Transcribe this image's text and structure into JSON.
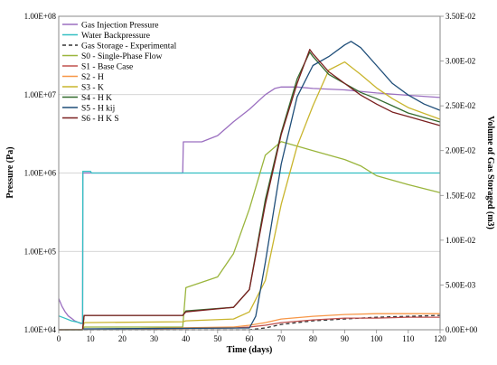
{
  "chart_data": {
    "type": "line",
    "xlabel": "Time (days)",
    "ylabel_left": "Pressure (Pa)",
    "ylabel_right": "Volume of Gas Storaged (m3)",
    "xlim": [
      0,
      120
    ],
    "x_ticks": [
      "0",
      "10",
      "20",
      "30",
      "40",
      "50",
      "60",
      "70",
      "80",
      "90",
      "100",
      "110",
      "120"
    ],
    "y_left_scale": "log",
    "y_left_lim": [
      10000,
      100000000
    ],
    "y_left_ticks": [
      "1.00E+04",
      "1.00E+05",
      "1.00E+06",
      "1.00E+07",
      "1.00E+08"
    ],
    "y_right_lim": [
      0,
      0.035
    ],
    "y_right_ticks": [
      "0.00E+00",
      "5.00E-03",
      "1.00E-02",
      "1.50E-02",
      "2.00E-02",
      "2.50E-02",
      "3.00E-02",
      "3.50E-02"
    ],
    "grid": true,
    "legend_position": "top-left",
    "series": [
      {
        "name": "Gas Injection Pressure",
        "axis": "left",
        "color": "#9b6fc0",
        "style": "solid",
        "points": [
          [
            0,
            25000
          ],
          [
            1,
            20000
          ],
          [
            2,
            17000
          ],
          [
            3,
            15000
          ],
          [
            4,
            14000
          ],
          [
            5,
            13000
          ],
          [
            6,
            12500
          ],
          [
            7,
            12000
          ],
          [
            7.5,
            12000
          ],
          [
            7.6,
            1000000
          ],
          [
            38,
            1000000
          ],
          [
            39,
            1000000
          ],
          [
            39.2,
            2500000
          ],
          [
            45,
            2500000
          ],
          [
            50,
            3000000
          ],
          [
            55,
            4500000
          ],
          [
            60,
            6500000
          ],
          [
            65,
            10000000
          ],
          [
            68,
            12000000
          ],
          [
            70,
            12500000
          ],
          [
            75,
            12500000
          ],
          [
            80,
            12000000
          ],
          [
            90,
            11500000
          ],
          [
            100,
            10500000
          ],
          [
            110,
            9800000
          ],
          [
            120,
            9200000
          ]
        ]
      },
      {
        "name": "Water Backpressure",
        "axis": "left",
        "color": "#33bfc2",
        "style": "solid",
        "points": [
          [
            0,
            15000
          ],
          [
            2,
            14000
          ],
          [
            4,
            13000
          ],
          [
            6,
            12500
          ],
          [
            7.5,
            12000
          ],
          [
            7.6,
            1050000
          ],
          [
            10,
            1050000
          ],
          [
            10.3,
            1000000
          ],
          [
            120,
            1000000
          ]
        ]
      },
      {
        "name": "Gas Storage - Experimental",
        "axis": "right",
        "color": "#333333",
        "style": "dashed",
        "points": [
          [
            0,
            0
          ],
          [
            60,
            0
          ],
          [
            65,
            0.0002
          ],
          [
            70,
            0.0006
          ],
          [
            80,
            0.001
          ],
          [
            90,
            0.0012
          ],
          [
            100,
            0.0014
          ],
          [
            110,
            0.0015
          ],
          [
            120,
            0.0016
          ]
        ]
      },
      {
        "name": "S0 - Single-Phase Flow",
        "axis": "right",
        "color": "#9ab53c",
        "style": "solid",
        "points": [
          [
            0,
            0
          ],
          [
            7.5,
            0
          ],
          [
            8,
            0.0003
          ],
          [
            39,
            0.0003
          ],
          [
            40,
            0.0047
          ],
          [
            50,
            0.0059
          ],
          [
            55,
            0.0085
          ],
          [
            60,
            0.0135
          ],
          [
            65,
            0.0195
          ],
          [
            70,
            0.021
          ],
          [
            75,
            0.0205
          ],
          [
            80,
            0.02
          ],
          [
            90,
            0.019
          ],
          [
            95,
            0.0183
          ],
          [
            100,
            0.0172
          ],
          [
            110,
            0.0162
          ],
          [
            120,
            0.0153
          ]
        ]
      },
      {
        "name": "S1 - Base Case",
        "axis": "right",
        "color": "#c0504d",
        "style": "solid",
        "points": [
          [
            0,
            0
          ],
          [
            55,
            0.0002
          ],
          [
            60,
            0.0003
          ],
          [
            65,
            0.0005
          ],
          [
            70,
            0.0008
          ],
          [
            80,
            0.0011
          ],
          [
            90,
            0.0013
          ],
          [
            100,
            0.0013
          ],
          [
            110,
            0.0014
          ],
          [
            120,
            0.0014
          ]
        ]
      },
      {
        "name": "S2 - H",
        "axis": "right",
        "color": "#f79646",
        "style": "solid",
        "points": [
          [
            0,
            0
          ],
          [
            55,
            0.0003
          ],
          [
            60,
            0.0005
          ],
          [
            65,
            0.0008
          ],
          [
            70,
            0.0012
          ],
          [
            80,
            0.0015
          ],
          [
            90,
            0.0017
          ],
          [
            100,
            0.0018
          ],
          [
            110,
            0.0018
          ],
          [
            120,
            0.0018
          ]
        ]
      },
      {
        "name": "S3 - K",
        "axis": "right",
        "color": "#c9b52d",
        "style": "solid",
        "points": [
          [
            0,
            0
          ],
          [
            7.5,
            0
          ],
          [
            8,
            0.0008
          ],
          [
            39,
            0.0009
          ],
          [
            40,
            0.001
          ],
          [
            55,
            0.0012
          ],
          [
            60,
            0.002
          ],
          [
            65,
            0.0055
          ],
          [
            70,
            0.014
          ],
          [
            75,
            0.0205
          ],
          [
            80,
            0.025
          ],
          [
            85,
            0.029
          ],
          [
            90,
            0.0299
          ],
          [
            95,
            0.0285
          ],
          [
            100,
            0.027
          ],
          [
            105,
            0.0258
          ],
          [
            110,
            0.0248
          ],
          [
            120,
            0.0235
          ]
        ]
      },
      {
        "name": "S4 - H K",
        "axis": "right",
        "color": "#336a2e",
        "style": "solid",
        "points": [
          [
            0,
            0
          ],
          [
            7.5,
            0
          ],
          [
            8,
            0.0016
          ],
          [
            39,
            0.0016
          ],
          [
            40,
            0.0021
          ],
          [
            55,
            0.0025
          ],
          [
            60,
            0.0045
          ],
          [
            65,
            0.0145
          ],
          [
            70,
            0.022
          ],
          [
            75,
            0.028
          ],
          [
            79,
            0.031
          ],
          [
            80,
            0.0305
          ],
          [
            85,
            0.0285
          ],
          [
            90,
            0.0275
          ],
          [
            95,
            0.0265
          ],
          [
            100,
            0.0258
          ],
          [
            105,
            0.025
          ],
          [
            110,
            0.0242
          ],
          [
            120,
            0.0232
          ]
        ]
      },
      {
        "name": "S5 - H kij",
        "axis": "right",
        "color": "#1f4e79",
        "style": "solid",
        "points": [
          [
            0,
            0
          ],
          [
            7.5,
            0
          ],
          [
            8,
            0.0001
          ],
          [
            60,
            0.0002
          ],
          [
            62,
            0.0015
          ],
          [
            65,
            0.0075
          ],
          [
            70,
            0.0185
          ],
          [
            75,
            0.026
          ],
          [
            80,
            0.0295
          ],
          [
            85,
            0.0305
          ],
          [
            90,
            0.0318
          ],
          [
            92,
            0.0322
          ],
          [
            95,
            0.0315
          ],
          [
            100,
            0.0295
          ],
          [
            105,
            0.0275
          ],
          [
            110,
            0.0262
          ],
          [
            115,
            0.0252
          ],
          [
            120,
            0.0245
          ]
        ]
      },
      {
        "name": "S6 - H K S",
        "axis": "right",
        "color": "#7a1f1f",
        "style": "solid",
        "points": [
          [
            0,
            0
          ],
          [
            7.5,
            0
          ],
          [
            8,
            0.0016
          ],
          [
            39,
            0.0016
          ],
          [
            40,
            0.002
          ],
          [
            55,
            0.0025
          ],
          [
            60,
            0.0045
          ],
          [
            65,
            0.014
          ],
          [
            70,
            0.0218
          ],
          [
            75,
            0.0275
          ],
          [
            79,
            0.0313
          ],
          [
            80,
            0.0308
          ],
          [
            85,
            0.0288
          ],
          [
            90,
            0.0275
          ],
          [
            95,
            0.0262
          ],
          [
            100,
            0.0252
          ],
          [
            105,
            0.0243
          ],
          [
            110,
            0.0238
          ],
          [
            120,
            0.0228
          ]
        ]
      }
    ]
  }
}
